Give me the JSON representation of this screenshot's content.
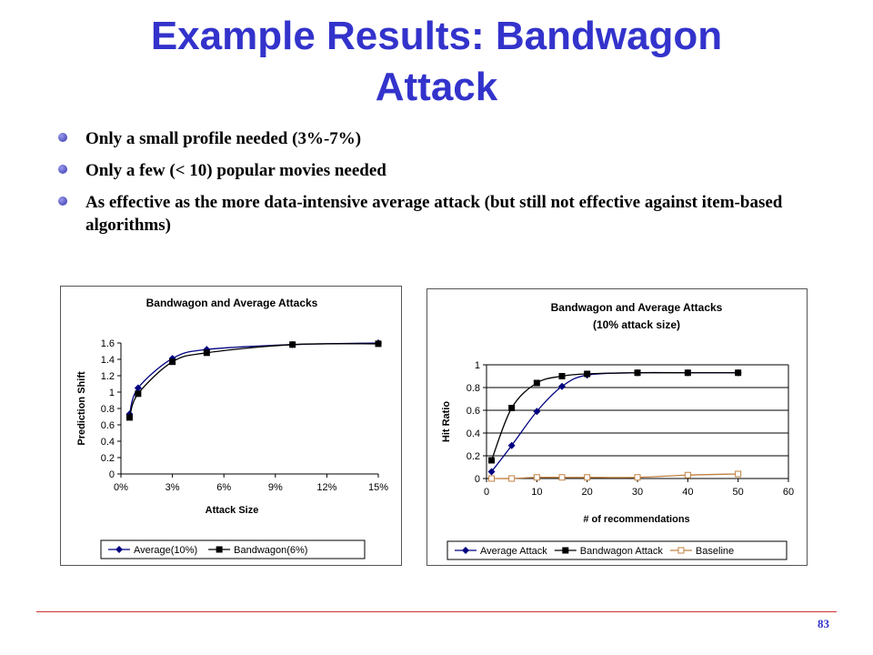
{
  "slide": {
    "title_line1": "Example Results: Bandwagon",
    "title_line2": "Attack",
    "bullets": [
      "Only a small profile needed (3%-7%)",
      "Only a few (< 10) popular movies needed",
      "As effective as the more data-intensive average attack (but still not effective against item-based algorithms)"
    ],
    "page_number": "83"
  },
  "chart_data": [
    {
      "type": "line",
      "title": "Bandwagon and Average Attacks",
      "xlabel": "Attack Size",
      "ylabel": "Prediction Shift",
      "xticks": [
        "0%",
        "3%",
        "6%",
        "9%",
        "12%",
        "15%"
      ],
      "yticks": [
        "0",
        "0.2",
        "0.4",
        "0.6",
        "0.8",
        "1",
        "1.2",
        "1.4",
        "1.6"
      ],
      "xlim": [
        0,
        15
      ],
      "ylim": [
        0,
        1.6
      ],
      "grid": false,
      "legend": "bottom",
      "series": [
        {
          "name": "Average(10%)",
          "marker": "diamond",
          "color": "#000080",
          "x": [
            0.5,
            1,
            3,
            5,
            10,
            15
          ],
          "y": [
            0.73,
            1.05,
            1.41,
            1.52,
            1.58,
            1.6
          ]
        },
        {
          "name": "Bandwagon(6%)",
          "marker": "square",
          "color": "#000000",
          "x": [
            0.5,
            1,
            3,
            5,
            10,
            15
          ],
          "y": [
            0.69,
            0.98,
            1.37,
            1.48,
            1.58,
            1.59
          ]
        }
      ]
    },
    {
      "type": "line",
      "title": "Bandwagon and Average Attacks",
      "subtitle": "(10% attack size)",
      "xlabel": "# of recommendations",
      "ylabel": "Hit Ratio",
      "xticks": [
        "0",
        "10",
        "20",
        "30",
        "40",
        "50",
        "60"
      ],
      "yticks": [
        "0",
        "0.2",
        "0.4",
        "0.6",
        "0.8",
        "1"
      ],
      "xlim": [
        0,
        60
      ],
      "ylim": [
        0,
        1
      ],
      "grid": true,
      "legend": "bottom",
      "series": [
        {
          "name": "Average Attack",
          "marker": "diamond",
          "color": "#000080",
          "x": [
            1,
            5,
            10,
            15,
            20,
            30,
            40,
            50
          ],
          "y": [
            0.06,
            0.29,
            0.59,
            0.81,
            0.91,
            0.93,
            0.93,
            0.93
          ]
        },
        {
          "name": "Bandwagon Attack",
          "marker": "square",
          "color": "#000000",
          "x": [
            1,
            5,
            10,
            15,
            20,
            30,
            40,
            50
          ],
          "y": [
            0.16,
            0.62,
            0.84,
            0.9,
            0.92,
            0.93,
            0.93,
            0.93
          ]
        },
        {
          "name": "Baseline",
          "marker": "square-open",
          "color": "#c08040",
          "x": [
            1,
            5,
            10,
            15,
            20,
            30,
            40,
            50
          ],
          "y": [
            0.0,
            0.0,
            0.01,
            0.01,
            0.01,
            0.01,
            0.03,
            0.04
          ]
        }
      ]
    }
  ]
}
